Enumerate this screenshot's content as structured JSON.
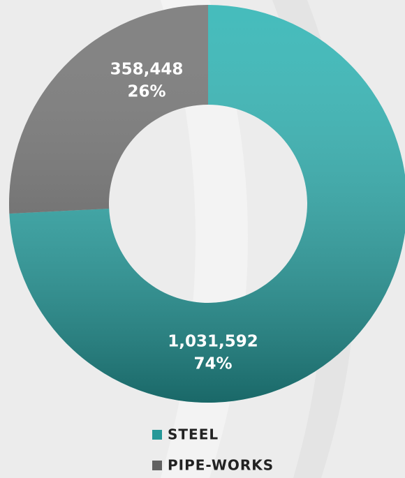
{
  "chart_data": {
    "type": "donut",
    "categories": [
      "STEEL",
      "PIPE-WORKS"
    ],
    "values": [
      1031592,
      358448
    ],
    "value_labels": [
      "1,031,592",
      "358,448"
    ],
    "percents": [
      74,
      26
    ],
    "percent_labels": [
      "74%",
      "26%"
    ],
    "colors": [
      "#2cb3b3",
      "#737373"
    ]
  }
}
